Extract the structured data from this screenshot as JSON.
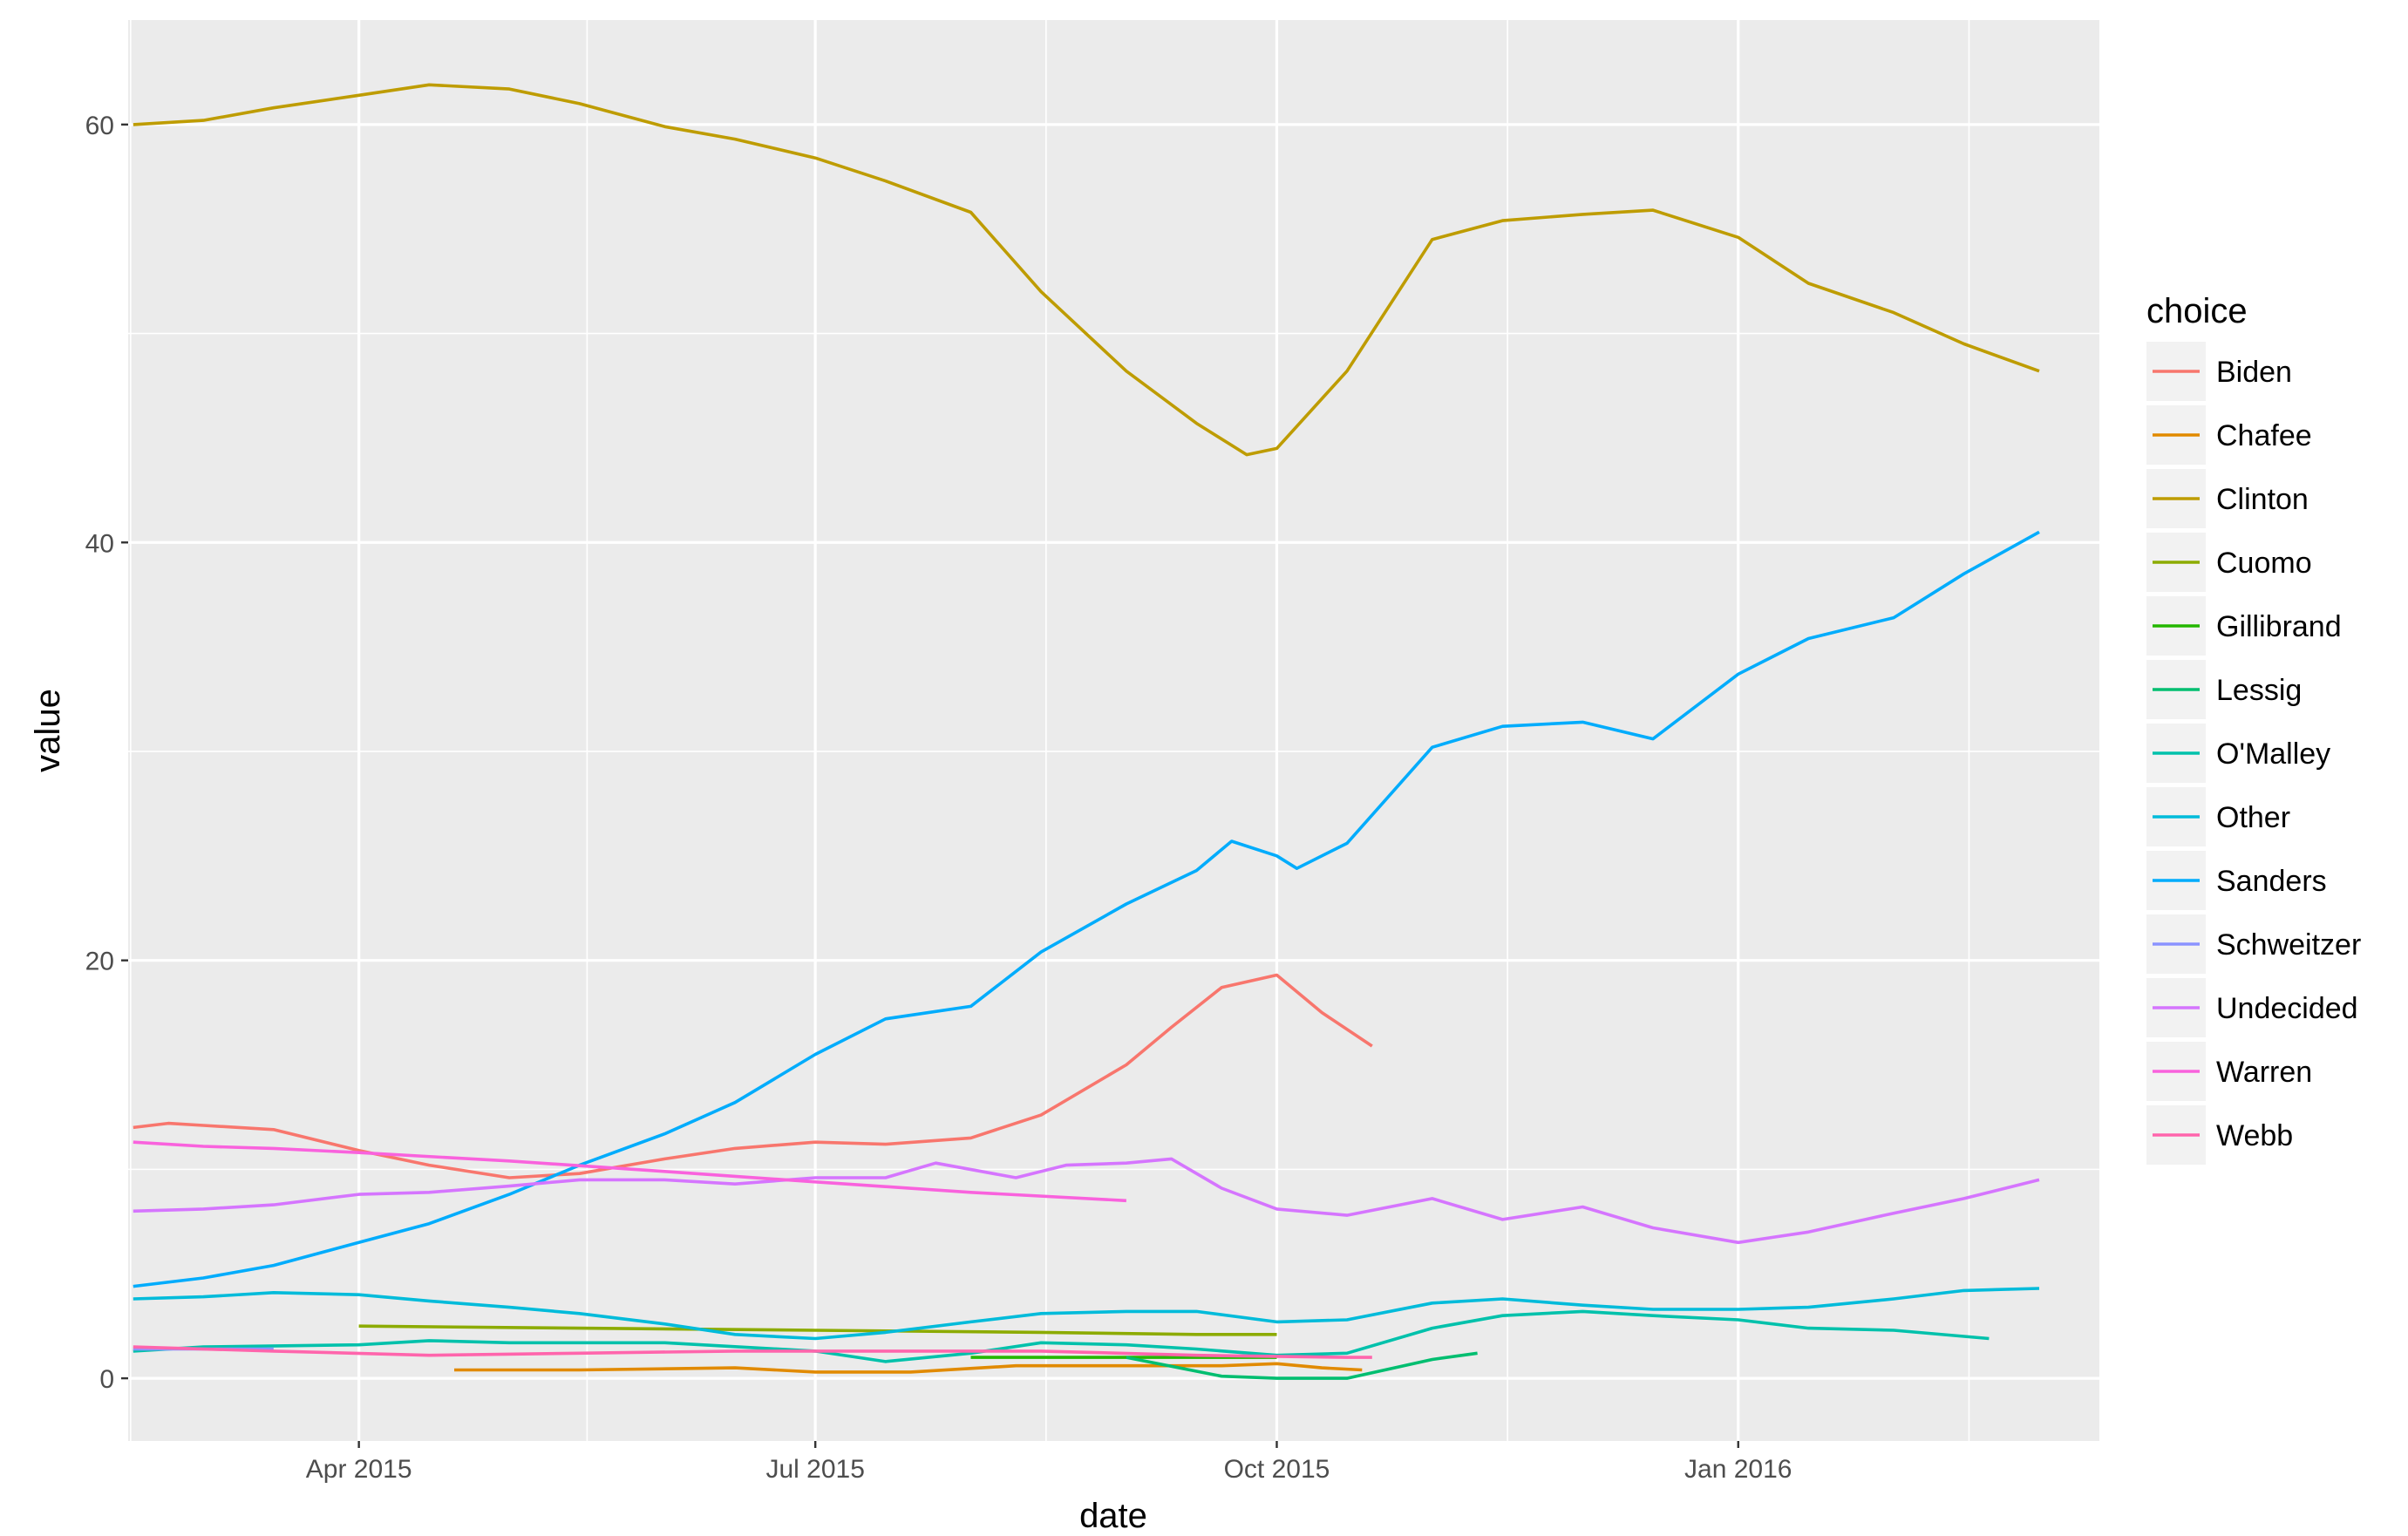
{
  "chart_data": {
    "type": "line",
    "title": "",
    "xlabel": "date",
    "ylabel": "value",
    "xlim": [
      "2015-02-14",
      "2016-03-13"
    ],
    "ylim": [
      -3,
      65
    ],
    "x_ticks": [
      {
        "date": "2015-04-01",
        "label": "Apr 2015"
      },
      {
        "date": "2015-07-01",
        "label": "Jul 2015"
      },
      {
        "date": "2015-10-01",
        "label": "Oct 2015"
      },
      {
        "date": "2016-01-01",
        "label": "Jan 2016"
      }
    ],
    "y_ticks": [
      0,
      20,
      40,
      60
    ],
    "grid": true,
    "background": "#ebebeb",
    "legend": {
      "title": "choice",
      "position": "right"
    },
    "series": [
      {
        "name": "Biden",
        "color": "#F8766D",
        "points": [
          [
            "2015-02-15",
            12.0
          ],
          [
            "2015-02-22",
            12.2
          ],
          [
            "2015-03-01",
            12.1
          ],
          [
            "2015-03-15",
            11.9
          ],
          [
            "2015-04-01",
            10.9
          ],
          [
            "2015-04-15",
            10.2
          ],
          [
            "2015-05-01",
            9.6
          ],
          [
            "2015-05-15",
            9.8
          ],
          [
            "2015-06-01",
            10.5
          ],
          [
            "2015-06-15",
            11.0
          ],
          [
            "2015-07-01",
            11.3
          ],
          [
            "2015-07-15",
            11.2
          ],
          [
            "2015-08-01",
            11.5
          ],
          [
            "2015-08-15",
            12.6
          ],
          [
            "2015-09-01",
            15.0
          ],
          [
            "2015-09-10",
            16.8
          ],
          [
            "2015-09-20",
            18.7
          ],
          [
            "2015-10-01",
            19.3
          ],
          [
            "2015-10-10",
            17.5
          ],
          [
            "2015-10-20",
            15.9
          ]
        ]
      },
      {
        "name": "Chafee",
        "color": "#E18A00",
        "points": [
          [
            "2015-04-20",
            0.4
          ],
          [
            "2015-05-15",
            0.4
          ],
          [
            "2015-06-15",
            0.5
          ],
          [
            "2015-07-01",
            0.3
          ],
          [
            "2015-07-20",
            0.3
          ],
          [
            "2015-08-10",
            0.6
          ],
          [
            "2015-09-01",
            0.6
          ],
          [
            "2015-09-20",
            0.6
          ],
          [
            "2015-10-01",
            0.7
          ],
          [
            "2015-10-10",
            0.5
          ],
          [
            "2015-10-18",
            0.4
          ]
        ]
      },
      {
        "name": "Clinton",
        "color": "#BE9C00",
        "points": [
          [
            "2015-02-15",
            60.0
          ],
          [
            "2015-03-01",
            60.2
          ],
          [
            "2015-03-15",
            60.8
          ],
          [
            "2015-04-01",
            61.4
          ],
          [
            "2015-04-15",
            61.9
          ],
          [
            "2015-05-01",
            61.7
          ],
          [
            "2015-05-15",
            61.0
          ],
          [
            "2015-06-01",
            59.9
          ],
          [
            "2015-06-15",
            59.3
          ],
          [
            "2015-07-01",
            58.4
          ],
          [
            "2015-07-15",
            57.3
          ],
          [
            "2015-08-01",
            55.8
          ],
          [
            "2015-08-15",
            52.0
          ],
          [
            "2015-09-01",
            48.2
          ],
          [
            "2015-09-15",
            45.7
          ],
          [
            "2015-09-25",
            44.2
          ],
          [
            "2015-10-01",
            44.5
          ],
          [
            "2015-10-15",
            48.2
          ],
          [
            "2015-11-01",
            54.5
          ],
          [
            "2015-11-15",
            55.4
          ],
          [
            "2015-12-01",
            55.7
          ],
          [
            "2015-12-15",
            55.9
          ],
          [
            "2016-01-01",
            54.6
          ],
          [
            "2016-01-15",
            52.4
          ],
          [
            "2016-02-01",
            51.0
          ],
          [
            "2016-02-15",
            49.5
          ],
          [
            "2016-03-01",
            48.2
          ]
        ]
      },
      {
        "name": "Cuomo",
        "color": "#8CAB00",
        "points": [
          [
            "2015-04-01",
            2.5
          ],
          [
            "2015-05-15",
            2.4
          ],
          [
            "2015-07-01",
            2.3
          ],
          [
            "2015-08-15",
            2.2
          ],
          [
            "2015-09-15",
            2.1
          ],
          [
            "2015-10-01",
            2.1
          ]
        ]
      },
      {
        "name": "Gillibrand",
        "color": "#24B700",
        "points": [
          [
            "2015-08-01",
            1.0
          ],
          [
            "2015-09-15",
            1.0
          ],
          [
            "2015-10-01",
            1.0
          ]
        ]
      },
      {
        "name": "Lessig",
        "color": "#00BE70",
        "points": [
          [
            "2015-09-01",
            1.0
          ],
          [
            "2015-09-20",
            0.1
          ],
          [
            "2015-10-01",
            0.0
          ],
          [
            "2015-10-15",
            0.0
          ],
          [
            "2015-11-01",
            0.9
          ],
          [
            "2015-11-10",
            1.2
          ]
        ]
      },
      {
        "name": "O'Malley",
        "color": "#00C1AB",
        "points": [
          [
            "2015-02-15",
            1.3
          ],
          [
            "2015-03-01",
            1.5
          ],
          [
            "2015-04-01",
            1.6
          ],
          [
            "2015-04-15",
            1.8
          ],
          [
            "2015-05-01",
            1.7
          ],
          [
            "2015-06-01",
            1.7
          ],
          [
            "2015-07-01",
            1.3
          ],
          [
            "2015-07-15",
            0.8
          ],
          [
            "2015-08-01",
            1.2
          ],
          [
            "2015-08-15",
            1.7
          ],
          [
            "2015-09-01",
            1.6
          ],
          [
            "2015-09-15",
            1.4
          ],
          [
            "2015-10-01",
            1.1
          ],
          [
            "2015-10-15",
            1.2
          ],
          [
            "2015-11-01",
            2.4
          ],
          [
            "2015-11-15",
            3.0
          ],
          [
            "2015-12-01",
            3.2
          ],
          [
            "2015-12-15",
            3.0
          ],
          [
            "2016-01-01",
            2.8
          ],
          [
            "2016-01-15",
            2.4
          ],
          [
            "2016-02-01",
            2.3
          ],
          [
            "2016-02-20",
            1.9
          ]
        ]
      },
      {
        "name": "Other",
        "color": "#00BBDA",
        "points": [
          [
            "2015-02-15",
            3.8
          ],
          [
            "2015-03-01",
            3.9
          ],
          [
            "2015-03-15",
            4.1
          ],
          [
            "2015-04-01",
            4.0
          ],
          [
            "2015-04-15",
            3.7
          ],
          [
            "2015-05-01",
            3.4
          ],
          [
            "2015-05-15",
            3.1
          ],
          [
            "2015-06-01",
            2.6
          ],
          [
            "2015-06-15",
            2.1
          ],
          [
            "2015-07-01",
            1.9
          ],
          [
            "2015-07-15",
            2.2
          ],
          [
            "2015-08-01",
            2.7
          ],
          [
            "2015-08-15",
            3.1
          ],
          [
            "2015-09-01",
            3.2
          ],
          [
            "2015-09-15",
            3.2
          ],
          [
            "2015-10-01",
            2.7
          ],
          [
            "2015-10-15",
            2.8
          ],
          [
            "2015-11-01",
            3.6
          ],
          [
            "2015-11-15",
            3.8
          ],
          [
            "2015-12-01",
            3.5
          ],
          [
            "2015-12-15",
            3.3
          ],
          [
            "2016-01-01",
            3.3
          ],
          [
            "2016-01-15",
            3.4
          ],
          [
            "2016-02-01",
            3.8
          ],
          [
            "2016-02-15",
            4.2
          ],
          [
            "2016-03-01",
            4.3
          ]
        ]
      },
      {
        "name": "Sanders",
        "color": "#00ACFC",
        "points": [
          [
            "2015-02-15",
            4.4
          ],
          [
            "2015-03-01",
            4.8
          ],
          [
            "2015-03-15",
            5.4
          ],
          [
            "2015-04-01",
            6.5
          ],
          [
            "2015-04-15",
            7.4
          ],
          [
            "2015-05-01",
            8.8
          ],
          [
            "2015-05-15",
            10.2
          ],
          [
            "2015-06-01",
            11.7
          ],
          [
            "2015-06-15",
            13.2
          ],
          [
            "2015-07-01",
            15.5
          ],
          [
            "2015-07-15",
            17.2
          ],
          [
            "2015-08-01",
            17.8
          ],
          [
            "2015-08-15",
            20.4
          ],
          [
            "2015-09-01",
            22.7
          ],
          [
            "2015-09-15",
            24.3
          ],
          [
            "2015-09-22",
            25.7
          ],
          [
            "2015-10-01",
            25.0
          ],
          [
            "2015-10-05",
            24.4
          ],
          [
            "2015-10-15",
            25.6
          ],
          [
            "2015-11-01",
            30.2
          ],
          [
            "2015-11-15",
            31.2
          ],
          [
            "2015-12-01",
            31.4
          ],
          [
            "2015-12-15",
            30.6
          ],
          [
            "2016-01-01",
            33.7
          ],
          [
            "2016-01-15",
            35.4
          ],
          [
            "2016-02-01",
            36.4
          ],
          [
            "2016-02-15",
            38.5
          ],
          [
            "2016-03-01",
            40.5
          ]
        ]
      },
      {
        "name": "Schweitzer",
        "color": "#8B93FF",
        "points": [
          [
            "2015-02-15",
            1.4
          ],
          [
            "2015-03-01",
            1.4
          ],
          [
            "2015-03-15",
            1.4
          ]
        ]
      },
      {
        "name": "Undecided",
        "color": "#D575FE",
        "points": [
          [
            "2015-02-15",
            8.0
          ],
          [
            "2015-03-01",
            8.1
          ],
          [
            "2015-03-15",
            8.3
          ],
          [
            "2015-04-01",
            8.8
          ],
          [
            "2015-04-15",
            8.9
          ],
          [
            "2015-05-01",
            9.2
          ],
          [
            "2015-05-15",
            9.5
          ],
          [
            "2015-06-01",
            9.5
          ],
          [
            "2015-06-15",
            9.3
          ],
          [
            "2015-07-01",
            9.6
          ],
          [
            "2015-07-15",
            9.6
          ],
          [
            "2015-07-25",
            10.3
          ],
          [
            "2015-08-10",
            9.6
          ],
          [
            "2015-08-20",
            10.2
          ],
          [
            "2015-09-01",
            10.3
          ],
          [
            "2015-09-10",
            10.5
          ],
          [
            "2015-09-20",
            9.1
          ],
          [
            "2015-10-01",
            8.1
          ],
          [
            "2015-10-15",
            7.8
          ],
          [
            "2015-11-01",
            8.6
          ],
          [
            "2015-11-15",
            7.6
          ],
          [
            "2015-12-01",
            8.2
          ],
          [
            "2015-12-15",
            7.2
          ],
          [
            "2016-01-01",
            6.5
          ],
          [
            "2016-01-15",
            7.0
          ],
          [
            "2016-02-01",
            7.9
          ],
          [
            "2016-02-15",
            8.6
          ],
          [
            "2016-03-01",
            9.5
          ]
        ]
      },
      {
        "name": "Warren",
        "color": "#F962DD",
        "points": [
          [
            "2015-02-15",
            11.3
          ],
          [
            "2015-03-01",
            11.1
          ],
          [
            "2015-03-15",
            11.0
          ],
          [
            "2015-04-01",
            10.8
          ],
          [
            "2015-05-01",
            10.4
          ],
          [
            "2015-06-01",
            9.9
          ],
          [
            "2015-07-01",
            9.4
          ],
          [
            "2015-08-01",
            8.9
          ],
          [
            "2015-09-01",
            8.5
          ]
        ]
      },
      {
        "name": "Webb",
        "color": "#FF65AC",
        "points": [
          [
            "2015-02-15",
            1.5
          ],
          [
            "2015-03-15",
            1.3
          ],
          [
            "2015-04-15",
            1.1
          ],
          [
            "2015-05-15",
            1.2
          ],
          [
            "2015-06-15",
            1.3
          ],
          [
            "2015-07-15",
            1.3
          ],
          [
            "2015-08-15",
            1.3
          ],
          [
            "2015-09-15",
            1.1
          ],
          [
            "2015-10-15",
            1.0
          ],
          [
            "2015-10-20",
            1.0
          ]
        ]
      }
    ]
  }
}
